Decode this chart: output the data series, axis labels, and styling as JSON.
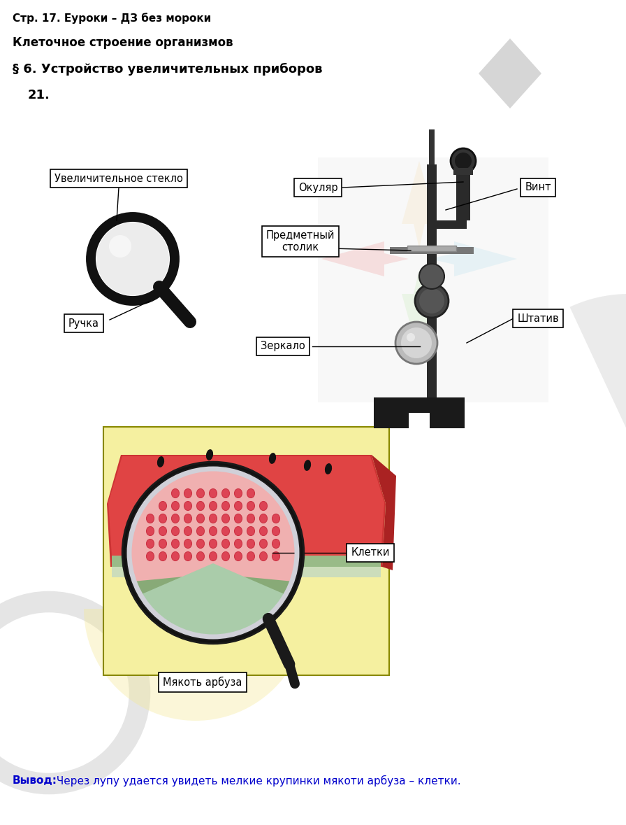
{
  "title1": "Стр. 17. Еуроки – ДЗ без мороки",
  "title2": "Клеточное строение организмов",
  "title3": "§ 6. Устройство увеличительных приборов",
  "number": "21.",
  "label_uvelich": "Увеличительное стекло",
  "label_okulyar": "Окуляр",
  "label_vint": "Винт",
  "label_predm": "Предметный\nстолик",
  "label_ruchka": "Ручка",
  "label_shtativ": "Штатив",
  "label_zerkalo": "Зеркало",
  "label_kletki": "Клетки",
  "label_myakot": "Мякоть арбуза",
  "vyvod_bold": "Вывод:",
  "vyvod_rest": " Через лупу удается увидеть мелкие крупинки мякоти арбуза – клетки.",
  "bg_color": "#ffffff",
  "text_color": "#000000",
  "watermark_cross_colors": [
    "#f4a0a0",
    "#fde8c0",
    "#c0e8f4",
    "#d0f0c0"
  ],
  "watermark_diamond_color": "#c0c0c0",
  "watermark_arc_color": "#c0c0c0",
  "watermark_circle_color": "#c0c0c0",
  "yellow_box_color": "#f5f0a0",
  "wm_red_color": "#e05050",
  "wm_darkred_color": "#cc3333",
  "wm_pink_color": "#f0a0a0",
  "wm_green_color": "#88bb66",
  "wm_lightgreen_color": "#aaccaa",
  "wm_white_color": "#e8e8e8",
  "cell_color": "#dd5566",
  "cell_edge_color": "#cc3344",
  "seed_color": "#111111",
  "loupe_outer_color": "#222222",
  "loupe_inner_color": "#888888",
  "loupe_glass_color": "#d0d0e0"
}
